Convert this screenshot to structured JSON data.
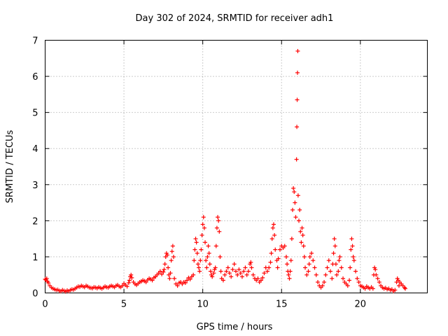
{
  "chart_data": {
    "type": "scatter",
    "title": "Day 302 of 2024, SRMTID for receiver adh1",
    "xlabel": "GPS time / hours",
    "ylabel": "SRMTID / TECUs",
    "xlim": [
      0,
      24.25
    ],
    "ylim": [
      0,
      7
    ],
    "x_ticks": [
      0,
      5,
      10,
      15,
      20
    ],
    "y_ticks": [
      0,
      1,
      2,
      3,
      4,
      5,
      6,
      7
    ],
    "grid": true,
    "marker": "+",
    "marker_color": "#ff0000",
    "series": [
      {
        "name": "SRMTID",
        "points": [
          [
            0.0,
            0.38
          ],
          [
            0.05,
            0.36
          ],
          [
            0.1,
            0.4
          ],
          [
            0.15,
            0.32
          ],
          [
            0.2,
            0.28
          ],
          [
            0.3,
            0.2
          ],
          [
            0.4,
            0.15
          ],
          [
            0.5,
            0.12
          ],
          [
            0.6,
            0.1
          ],
          [
            0.7,
            0.08
          ],
          [
            0.8,
            0.09
          ],
          [
            0.9,
            0.06
          ],
          [
            1.0,
            0.05
          ],
          [
            1.1,
            0.08
          ],
          [
            1.2,
            0.06
          ],
          [
            1.3,
            0.04
          ],
          [
            1.4,
            0.07
          ],
          [
            1.5,
            0.05
          ],
          [
            1.6,
            0.08
          ],
          [
            1.7,
            0.1
          ],
          [
            1.8,
            0.09
          ],
          [
            1.9,
            0.12
          ],
          [
            2.0,
            0.15
          ],
          [
            2.1,
            0.18
          ],
          [
            2.2,
            0.17
          ],
          [
            2.3,
            0.2
          ],
          [
            2.4,
            0.18
          ],
          [
            2.5,
            0.16
          ],
          [
            2.6,
            0.2
          ],
          [
            2.7,
            0.18
          ],
          [
            2.8,
            0.15
          ],
          [
            2.9,
            0.14
          ],
          [
            3.0,
            0.13
          ],
          [
            3.1,
            0.16
          ],
          [
            3.2,
            0.15
          ],
          [
            3.3,
            0.13
          ],
          [
            3.4,
            0.16
          ],
          [
            3.5,
            0.14
          ],
          [
            3.6,
            0.12
          ],
          [
            3.7,
            0.15
          ],
          [
            3.8,
            0.18
          ],
          [
            3.9,
            0.16
          ],
          [
            4.0,
            0.15
          ],
          [
            4.1,
            0.18
          ],
          [
            4.2,
            0.2
          ],
          [
            4.3,
            0.18
          ],
          [
            4.4,
            0.16
          ],
          [
            4.5,
            0.2
          ],
          [
            4.6,
            0.22
          ],
          [
            4.7,
            0.18
          ],
          [
            4.8,
            0.16
          ],
          [
            4.9,
            0.2
          ],
          [
            5.0,
            0.26
          ],
          [
            5.1,
            0.22
          ],
          [
            5.2,
            0.18
          ],
          [
            5.3,
            0.28
          ],
          [
            5.35,
            0.35
          ],
          [
            5.4,
            0.45
          ],
          [
            5.45,
            0.5
          ],
          [
            5.5,
            0.42
          ],
          [
            5.6,
            0.3
          ],
          [
            5.7,
            0.25
          ],
          [
            5.8,
            0.22
          ],
          [
            5.9,
            0.26
          ],
          [
            6.0,
            0.3
          ],
          [
            6.1,
            0.32
          ],
          [
            6.2,
            0.35
          ],
          [
            6.3,
            0.33
          ],
          [
            6.4,
            0.3
          ],
          [
            6.5,
            0.36
          ],
          [
            6.6,
            0.4
          ],
          [
            6.7,
            0.38
          ],
          [
            6.8,
            0.35
          ],
          [
            6.9,
            0.42
          ],
          [
            7.0,
            0.45
          ],
          [
            7.1,
            0.5
          ],
          [
            7.2,
            0.55
          ],
          [
            7.3,
            0.6
          ],
          [
            7.4,
            0.52
          ],
          [
            7.5,
            0.58
          ],
          [
            7.55,
            0.65
          ],
          [
            7.6,
            0.8
          ],
          [
            7.65,
            1.0
          ],
          [
            7.7,
            1.1
          ],
          [
            7.75,
            1.05
          ],
          [
            7.8,
            0.7
          ],
          [
            7.85,
            0.5
          ],
          [
            7.9,
            0.4
          ],
          [
            7.95,
            0.55
          ],
          [
            8.0,
            0.9
          ],
          [
            8.05,
            1.15
          ],
          [
            8.1,
            1.3
          ],
          [
            8.15,
            1.0
          ],
          [
            8.2,
            0.4
          ],
          [
            8.3,
            0.25
          ],
          [
            8.4,
            0.2
          ],
          [
            8.5,
            0.28
          ],
          [
            8.6,
            0.3
          ],
          [
            8.7,
            0.25
          ],
          [
            8.8,
            0.3
          ],
          [
            8.9,
            0.28
          ],
          [
            9.0,
            0.35
          ],
          [
            9.1,
            0.42
          ],
          [
            9.2,
            0.38
          ],
          [
            9.3,
            0.45
          ],
          [
            9.4,
            0.5
          ],
          [
            9.45,
            0.9
          ],
          [
            9.5,
            1.2
          ],
          [
            9.55,
            1.5
          ],
          [
            9.6,
            1.4
          ],
          [
            9.65,
            1.1
          ],
          [
            9.7,
            0.8
          ],
          [
            9.75,
            0.7
          ],
          [
            9.8,
            0.6
          ],
          [
            9.85,
            0.9
          ],
          [
            9.9,
            1.2
          ],
          [
            9.95,
            1.6
          ],
          [
            10.0,
            1.9
          ],
          [
            10.05,
            2.1
          ],
          [
            10.1,
            1.8
          ],
          [
            10.15,
            1.4
          ],
          [
            10.2,
            0.9
          ],
          [
            10.25,
            0.7
          ],
          [
            10.3,
            1.0
          ],
          [
            10.35,
            1.3
          ],
          [
            10.4,
            1.1
          ],
          [
            10.45,
            0.8
          ],
          [
            10.5,
            0.6
          ],
          [
            10.55,
            0.5
          ],
          [
            10.6,
            0.45
          ],
          [
            10.7,
            0.55
          ],
          [
            10.75,
            0.65
          ],
          [
            10.8,
            0.7
          ],
          [
            10.85,
            1.3
          ],
          [
            10.9,
            1.8
          ],
          [
            10.95,
            2.1
          ],
          [
            11.0,
            2.0
          ],
          [
            11.05,
            1.7
          ],
          [
            11.1,
            1.0
          ],
          [
            11.15,
            0.6
          ],
          [
            11.2,
            0.4
          ],
          [
            11.3,
            0.35
          ],
          [
            11.4,
            0.5
          ],
          [
            11.5,
            0.6
          ],
          [
            11.6,
            0.7
          ],
          [
            11.7,
            0.55
          ],
          [
            11.8,
            0.45
          ],
          [
            11.9,
            0.65
          ],
          [
            12.0,
            0.8
          ],
          [
            12.1,
            0.6
          ],
          [
            12.2,
            0.5
          ],
          [
            12.3,
            0.65
          ],
          [
            12.4,
            0.55
          ],
          [
            12.5,
            0.45
          ],
          [
            12.6,
            0.6
          ],
          [
            12.7,
            0.7
          ],
          [
            12.8,
            0.5
          ],
          [
            12.9,
            0.6
          ],
          [
            13.0,
            0.8
          ],
          [
            13.05,
            0.85
          ],
          [
            13.1,
            0.7
          ],
          [
            13.2,
            0.5
          ],
          [
            13.3,
            0.4
          ],
          [
            13.4,
            0.35
          ],
          [
            13.5,
            0.4
          ],
          [
            13.6,
            0.3
          ],
          [
            13.7,
            0.35
          ],
          [
            13.8,
            0.42
          ],
          [
            13.9,
            0.55
          ],
          [
            14.0,
            0.7
          ],
          [
            14.1,
            0.6
          ],
          [
            14.2,
            0.7
          ],
          [
            14.3,
            0.85
          ],
          [
            14.35,
            1.1
          ],
          [
            14.4,
            1.5
          ],
          [
            14.45,
            1.8
          ],
          [
            14.5,
            1.9
          ],
          [
            14.55,
            1.6
          ],
          [
            14.6,
            1.2
          ],
          [
            14.7,
            0.9
          ],
          [
            14.75,
            0.7
          ],
          [
            14.8,
            0.95
          ],
          [
            14.9,
            1.2
          ],
          [
            15.0,
            1.3
          ],
          [
            15.1,
            1.25
          ],
          [
            15.2,
            1.3
          ],
          [
            15.3,
            1.0
          ],
          [
            15.35,
            0.8
          ],
          [
            15.4,
            0.6
          ],
          [
            15.45,
            0.5
          ],
          [
            15.5,
            0.4
          ],
          [
            15.55,
            0.6
          ],
          [
            15.6,
            0.9
          ],
          [
            15.65,
            1.5
          ],
          [
            15.7,
            2.3
          ],
          [
            15.75,
            2.9
          ],
          [
            15.8,
            2.8
          ],
          [
            15.85,
            2.5
          ],
          [
            15.9,
            2.1
          ],
          [
            15.95,
            3.7
          ],
          [
            15.97,
            4.6
          ],
          [
            15.99,
            5.35
          ],
          [
            16.01,
            6.1
          ],
          [
            16.03,
            6.7
          ],
          [
            16.05,
            2.7
          ],
          [
            16.1,
            2.0
          ],
          [
            16.15,
            2.3
          ],
          [
            16.2,
            1.7
          ],
          [
            16.25,
            1.4
          ],
          [
            16.3,
            1.8
          ],
          [
            16.35,
            1.6
          ],
          [
            16.4,
            1.3
          ],
          [
            16.45,
            1.0
          ],
          [
            16.5,
            0.7
          ],
          [
            16.6,
            0.5
          ],
          [
            16.7,
            0.6
          ],
          [
            16.75,
            0.8
          ],
          [
            16.8,
            1.0
          ],
          [
            16.9,
            1.1
          ],
          [
            17.0,
            0.9
          ],
          [
            17.1,
            0.7
          ],
          [
            17.2,
            0.5
          ],
          [
            17.3,
            0.3
          ],
          [
            17.4,
            0.2
          ],
          [
            17.5,
            0.15
          ],
          [
            17.6,
            0.2
          ],
          [
            17.7,
            0.3
          ],
          [
            17.8,
            0.5
          ],
          [
            17.9,
            0.7
          ],
          [
            18.0,
            0.9
          ],
          [
            18.1,
            0.6
          ],
          [
            18.2,
            0.4
          ],
          [
            18.25,
            0.8
          ],
          [
            18.3,
            1.1
          ],
          [
            18.35,
            1.5
          ],
          [
            18.4,
            1.3
          ],
          [
            18.45,
            0.8
          ],
          [
            18.5,
            0.5
          ],
          [
            18.6,
            0.6
          ],
          [
            18.65,
            0.9
          ],
          [
            18.7,
            1.0
          ],
          [
            18.8,
            0.7
          ],
          [
            18.9,
            0.4
          ],
          [
            19.0,
            0.3
          ],
          [
            19.1,
            0.25
          ],
          [
            19.2,
            0.2
          ],
          [
            19.3,
            0.35
          ],
          [
            19.35,
            0.7
          ],
          [
            19.4,
            1.2
          ],
          [
            19.45,
            1.5
          ],
          [
            19.5,
            1.3
          ],
          [
            19.55,
            1.0
          ],
          [
            19.6,
            0.9
          ],
          [
            19.7,
            0.6
          ],
          [
            19.8,
            0.4
          ],
          [
            19.9,
            0.3
          ],
          [
            20.0,
            0.2
          ],
          [
            20.1,
            0.18
          ],
          [
            20.2,
            0.15
          ],
          [
            20.3,
            0.12
          ],
          [
            20.4,
            0.18
          ],
          [
            20.5,
            0.15
          ],
          [
            20.6,
            0.12
          ],
          [
            20.7,
            0.16
          ],
          [
            20.8,
            0.12
          ],
          [
            20.85,
            0.5
          ],
          [
            20.9,
            0.7
          ],
          [
            20.95,
            0.65
          ],
          [
            21.0,
            0.5
          ],
          [
            21.1,
            0.4
          ],
          [
            21.2,
            0.3
          ],
          [
            21.3,
            0.2
          ],
          [
            21.4,
            0.15
          ],
          [
            21.5,
            0.12
          ],
          [
            21.6,
            0.14
          ],
          [
            21.7,
            0.1
          ],
          [
            21.8,
            0.12
          ],
          [
            21.9,
            0.08
          ],
          [
            22.0,
            0.1
          ],
          [
            22.1,
            0.05
          ],
          [
            22.2,
            0.08
          ],
          [
            22.3,
            0.3
          ],
          [
            22.35,
            0.4
          ],
          [
            22.4,
            0.35
          ],
          [
            22.45,
            0.2
          ],
          [
            22.5,
            0.3
          ],
          [
            22.6,
            0.25
          ],
          [
            22.7,
            0.2
          ],
          [
            22.8,
            0.15
          ],
          [
            22.85,
            0.12
          ]
        ]
      }
    ]
  }
}
